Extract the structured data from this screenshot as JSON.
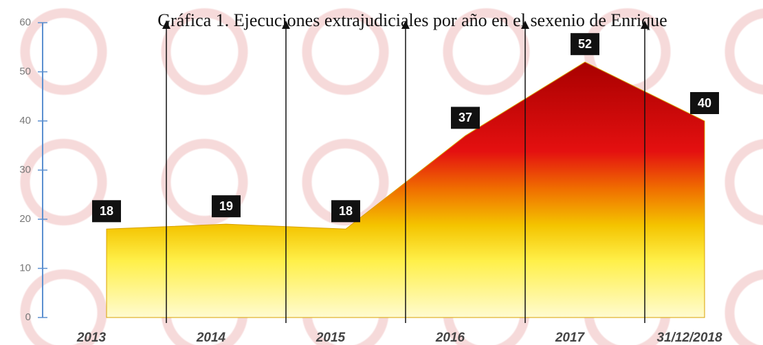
{
  "chart_data": {
    "type": "area",
    "title": "Gráfica 1. Ejecuciones extrajudiciales por año en el sexenio de Enrique",
    "categories": [
      "2013",
      "2014",
      "2015",
      "2016",
      "2017",
      "31/12/2018"
    ],
    "values": [
      18,
      19,
      18,
      37,
      52,
      40
    ],
    "ylim": [
      0,
      60
    ],
    "yticks": [
      0,
      10,
      20,
      30,
      40,
      50,
      60
    ]
  }
}
